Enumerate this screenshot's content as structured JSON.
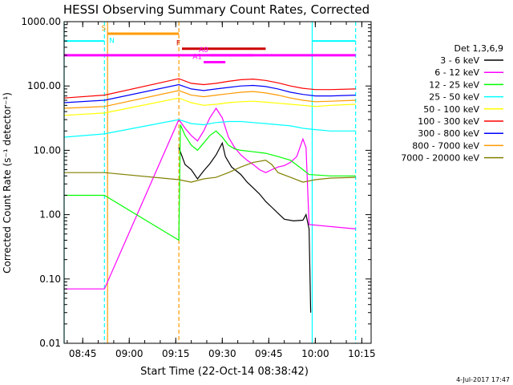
{
  "chart_data": {
    "type": "line",
    "title": "HESSI Observing Summary Count Rates, Corrected",
    "xlabel": "Start Time (22-Oct-14 08:38:42)",
    "ylabel": "Corrected Count Rate (s⁻¹ detector⁻¹)",
    "yscale": "log",
    "ylim": [
      0.01,
      1000
    ],
    "xlim": [
      "08:39",
      "10:18"
    ],
    "x_ticks": [
      "08:45",
      "09:00",
      "09:15",
      "09:30",
      "09:45",
      "10:00",
      "10:15"
    ],
    "y_ticks": [
      "0.01",
      "0.10",
      "1.00",
      "10.00",
      "100.00",
      "1000.00"
    ],
    "grid": false,
    "legend_title": "Det 1,3,6,9",
    "legend_position": "right",
    "footer_date": "4-Jul-2017 17:47",
    "series": [
      {
        "name": "3 - 6 keV",
        "color": "#000000",
        "points": [
          [
            "09:16",
            11
          ],
          [
            "09:18",
            6
          ],
          [
            "09:20",
            5
          ],
          [
            "09:22",
            3.6
          ],
          [
            "09:24",
            4.8
          ],
          [
            "09:26",
            6.2
          ],
          [
            "09:28",
            8.5
          ],
          [
            "09:30",
            13
          ],
          [
            "09:31",
            8
          ],
          [
            "09:33",
            5.5
          ],
          [
            "09:36",
            4.2
          ],
          [
            "09:38",
            3.2
          ],
          [
            "09:40",
            2.6
          ],
          [
            "09:42",
            2.1
          ],
          [
            "09:44",
            1.6
          ],
          [
            "09:46",
            1.3
          ],
          [
            "09:48",
            1.05
          ],
          [
            "09:50",
            0.85
          ],
          [
            "09:53",
            0.8
          ],
          [
            "09:56",
            0.82
          ],
          [
            "09:57",
            1.0
          ],
          [
            "09:58",
            0.6
          ],
          [
            "09:58.5",
            0.03
          ]
        ]
      },
      {
        "name": "6 - 12 keV",
        "color": "#ff00ff",
        "points": [
          [
            "08:39",
            0.07
          ],
          [
            "08:52",
            0.07
          ],
          [
            "09:16",
            30
          ],
          [
            "09:18",
            22
          ],
          [
            "09:20",
            17
          ],
          [
            "09:22",
            14
          ],
          [
            "09:24",
            20
          ],
          [
            "09:26",
            32
          ],
          [
            "09:28",
            45
          ],
          [
            "09:30",
            32
          ],
          [
            "09:32",
            16
          ],
          [
            "09:34",
            11
          ],
          [
            "09:36",
            8.5
          ],
          [
            "09:38",
            7
          ],
          [
            "09:40",
            6
          ],
          [
            "09:42",
            5
          ],
          [
            "09:44",
            4.5
          ],
          [
            "09:46",
            5
          ],
          [
            "09:48",
            5.5
          ],
          [
            "09:50",
            5.8
          ],
          [
            "09:52",
            6.5
          ],
          [
            "09:54",
            8
          ],
          [
            "09:56",
            15
          ],
          [
            "09:57",
            11
          ],
          [
            "09:58",
            0.7
          ],
          [
            "10:13",
            0.6
          ]
        ]
      },
      {
        "name": "12 - 25 keV",
        "color": "#00ff00",
        "points": [
          [
            "08:39",
            2.0
          ],
          [
            "08:52",
            2.0
          ],
          [
            "09:16",
            0.4
          ],
          [
            "09:16.5",
            25
          ],
          [
            "09:18",
            17
          ],
          [
            "09:20",
            12
          ],
          [
            "09:22",
            10
          ],
          [
            "09:24",
            13
          ],
          [
            "09:26",
            17
          ],
          [
            "09:28",
            20
          ],
          [
            "09:30",
            16
          ],
          [
            "09:32",
            12
          ],
          [
            "09:34",
            10.5
          ],
          [
            "09:36",
            10
          ],
          [
            "09:40",
            9.5
          ],
          [
            "09:44",
            9
          ],
          [
            "09:48",
            8
          ],
          [
            "09:52",
            7
          ],
          [
            "09:56",
            5
          ],
          [
            "09:58",
            4.2
          ],
          [
            "10:05",
            4.0
          ],
          [
            "10:13",
            4.0
          ]
        ]
      },
      {
        "name": "25 - 50 keV",
        "color": "#00ffff",
        "points": [
          [
            "08:39",
            16
          ],
          [
            "08:52",
            18
          ],
          [
            "09:16",
            30
          ],
          [
            "09:20",
            26
          ],
          [
            "09:24",
            25
          ],
          [
            "09:28",
            27
          ],
          [
            "09:32",
            28
          ],
          [
            "09:36",
            28
          ],
          [
            "09:40",
            27
          ],
          [
            "09:44",
            26
          ],
          [
            "09:48",
            25
          ],
          [
            "09:52",
            24
          ],
          [
            "09:56",
            22
          ],
          [
            "10:00",
            21
          ],
          [
            "10:05",
            20
          ],
          [
            "10:13",
            20
          ]
        ]
      },
      {
        "name": "50 - 100 keV",
        "color": "#ffff00",
        "points": [
          [
            "08:39",
            35
          ],
          [
            "08:52",
            38
          ],
          [
            "09:16",
            65
          ],
          [
            "09:20",
            55
          ],
          [
            "09:24",
            50
          ],
          [
            "09:28",
            52
          ],
          [
            "09:32",
            55
          ],
          [
            "09:36",
            57
          ],
          [
            "09:40",
            58
          ],
          [
            "09:44",
            56
          ],
          [
            "09:48",
            54
          ],
          [
            "09:52",
            52
          ],
          [
            "09:56",
            50
          ],
          [
            "10:00",
            48
          ],
          [
            "10:05",
            50
          ],
          [
            "10:13",
            52
          ]
        ]
      },
      {
        "name": "100 - 300 keV",
        "color": "#ff0000",
        "points": [
          [
            "08:39",
            65
          ],
          [
            "08:52",
            72
          ],
          [
            "09:16",
            130
          ],
          [
            "09:20",
            110
          ],
          [
            "09:24",
            105
          ],
          [
            "09:28",
            110
          ],
          [
            "09:32",
            118
          ],
          [
            "09:36",
            125
          ],
          [
            "09:40",
            128
          ],
          [
            "09:44",
            122
          ],
          [
            "09:48",
            112
          ],
          [
            "09:52",
            100
          ],
          [
            "09:56",
            92
          ],
          [
            "10:00",
            88
          ],
          [
            "10:05",
            88
          ],
          [
            "10:13",
            90
          ]
        ]
      },
      {
        "name": "300 - 800 keV",
        "color": "#0000ff",
        "points": [
          [
            "08:39",
            55
          ],
          [
            "08:52",
            60
          ],
          [
            "09:16",
            105
          ],
          [
            "09:20",
            90
          ],
          [
            "09:24",
            85
          ],
          [
            "09:28",
            90
          ],
          [
            "09:32",
            95
          ],
          [
            "09:36",
            100
          ],
          [
            "09:40",
            102
          ],
          [
            "09:44",
            98
          ],
          [
            "09:48",
            90
          ],
          [
            "09:52",
            80
          ],
          [
            "09:56",
            74
          ],
          [
            "10:00",
            70
          ],
          [
            "10:05",
            70
          ],
          [
            "10:13",
            72
          ]
        ]
      },
      {
        "name": "800 - 7000 keV",
        "color": "#ff9900",
        "points": [
          [
            "08:39",
            45
          ],
          [
            "08:52",
            48
          ],
          [
            "09:16",
            85
          ],
          [
            "09:20",
            72
          ],
          [
            "09:24",
            68
          ],
          [
            "09:28",
            72
          ],
          [
            "09:32",
            76
          ],
          [
            "09:36",
            80
          ],
          [
            "09:40",
            82
          ],
          [
            "09:44",
            78
          ],
          [
            "09:48",
            72
          ],
          [
            "09:52",
            65
          ],
          [
            "09:56",
            60
          ],
          [
            "10:00",
            57
          ],
          [
            "10:05",
            58
          ],
          [
            "10:13",
            60
          ]
        ]
      },
      {
        "name": "7000 - 20000 keV",
        "color": "#808000",
        "points": [
          [
            "08:39",
            4.5
          ],
          [
            "08:52",
            4.5
          ],
          [
            "09:16",
            3.5
          ],
          [
            "09:20",
            3.2
          ],
          [
            "09:24",
            3.6
          ],
          [
            "09:28",
            3.8
          ],
          [
            "09:32",
            4.5
          ],
          [
            "09:36",
            5.5
          ],
          [
            "09:40",
            6.5
          ],
          [
            "09:44",
            7
          ],
          [
            "09:46",
            6
          ],
          [
            "09:48",
            4.5
          ],
          [
            "09:52",
            3.8
          ],
          [
            "09:56",
            3.2
          ],
          [
            "10:00",
            3.5
          ],
          [
            "10:05",
            3.7
          ],
          [
            "10:13",
            3.8
          ]
        ]
      }
    ],
    "vertical_markers": [
      {
        "time": "08:39",
        "color": "#00ffff",
        "style": "solid"
      },
      {
        "time": "08:52",
        "color": "#00ffff",
        "style": "dashed"
      },
      {
        "time": "08:53",
        "color": "#ff9900",
        "style": "solid"
      },
      {
        "time": "09:16",
        "color": "#ff9900",
        "style": "dashed"
      },
      {
        "time": "09:59",
        "color": "#00ffff",
        "style": "solid"
      },
      {
        "time": "10:13",
        "color": "#00ffff",
        "style": "dashed"
      }
    ],
    "annotation_bars": [
      {
        "label": "",
        "color": "#00ffff",
        "start": "08:39",
        "end": "08:52",
        "level": 500,
        "thick": false
      },
      {
        "label": "",
        "color": "#00ffff",
        "start": "09:59",
        "end": "10:13",
        "level": 500,
        "thick": false
      },
      {
        "label": "S",
        "color": "#ff9900",
        "start": "08:53",
        "end": "09:16",
        "level": 650,
        "thick": true
      },
      {
        "label": "F",
        "color": "#cc0000",
        "start": "09:17",
        "end": "09:44",
        "level": 380,
        "thick": true
      },
      {
        "label": "",
        "color": "#ff00ff",
        "start": "08:39",
        "end": "10:13",
        "level": 300,
        "thick": true
      },
      {
        "label": "A0",
        "color": "#ff00ff",
        "start": "09:26",
        "end": "09:40",
        "level": 300,
        "thick": true
      },
      {
        "label": "A1",
        "color": "#ff00ff",
        "start": "09:24",
        "end": "09:31",
        "level": 235,
        "thick": true
      }
    ],
    "markers_text": [
      {
        "label": "N",
        "color": "#00ffff",
        "time": "08:53",
        "level": 470
      }
    ]
  }
}
